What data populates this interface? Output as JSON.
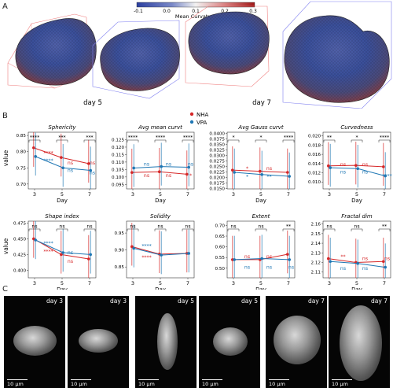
{
  "panel_labels": {
    "a": "A",
    "b": "B",
    "c": "C"
  },
  "colorbar": {
    "ticks": [
      "-0.1",
      "0.0",
      "0.1",
      "0.2",
      "0.3"
    ],
    "label": "Mean Curvature"
  },
  "panelA": {
    "day_left": "day 5",
    "day_right": "day 7"
  },
  "legend": {
    "nha": "NHA",
    "vpa": "VPA"
  },
  "colors": {
    "nha": "#d62728",
    "vpa": "#1f77b4"
  },
  "common": {
    "xlabel": "Day",
    "ylabel": "value"
  },
  "chart_data": [
    {
      "type": "line",
      "title": "Sphericity",
      "categories": [
        "3",
        "5",
        "7"
      ],
      "ylim": [
        0.685,
        0.86
      ],
      "yticks": [
        0.7,
        0.75,
        0.8,
        0.85
      ],
      "ytick_labels": [
        "0.70",
        "0.75",
        "0.80",
        "0.85"
      ],
      "series": [
        {
          "name": "NHA",
          "values": [
            0.812,
            0.782,
            0.763
          ]
        },
        {
          "name": "VPA",
          "values": [
            0.785,
            0.75,
            0.742
          ]
        }
      ],
      "brackets": [
        {
          "from": 0,
          "to": 1,
          "text": "****"
        },
        {
          "from": 1,
          "to": 2,
          "text": "***"
        },
        {
          "from": 2,
          "to": 3,
          "text": "***"
        }
      ],
      "inline": [
        {
          "x": 0.5,
          "y": 0.795,
          "text": "****",
          "c": "nha"
        },
        {
          "x": 0.5,
          "y": 0.772,
          "text": "****",
          "c": "vpa"
        },
        {
          "x": 1.3,
          "y": 0.765,
          "text": "ns",
          "c": "nha"
        },
        {
          "x": 1.3,
          "y": 0.742,
          "text": "ns",
          "c": "vpa"
        },
        {
          "x": 2.1,
          "y": 0.765,
          "text": "ns",
          "c": "nha"
        },
        {
          "x": 2.1,
          "y": 0.735,
          "text": "ns",
          "c": "vpa"
        }
      ]
    },
    {
      "type": "line",
      "title": "Avg mean curvt",
      "categories": [
        "3",
        "5",
        "7"
      ],
      "ylim": [
        0.092,
        0.13
      ],
      "yticks": [
        0.095,
        0.1,
        0.105,
        0.11,
        0.115,
        0.12,
        0.125
      ],
      "ytick_labels": [
        "0.095",
        "0.100",
        "0.105",
        "0.110",
        "0.115",
        "0.120",
        "0.125"
      ],
      "series": [
        {
          "name": "NHA",
          "values": [
            0.103,
            0.1035,
            0.1018
          ]
        },
        {
          "name": "VPA",
          "values": [
            0.106,
            0.107,
            0.1065
          ]
        }
      ],
      "brackets": [
        {
          "from": 0,
          "to": 1,
          "text": "****"
        },
        {
          "from": 1,
          "to": 2,
          "text": "****"
        },
        {
          "from": 2,
          "to": 3,
          "text": "****"
        }
      ],
      "inline": [
        {
          "x": 0.5,
          "y": 0.1085,
          "text": "ns",
          "c": "vpa"
        },
        {
          "x": 0.5,
          "y": 0.101,
          "text": "ns",
          "c": "nha"
        },
        {
          "x": 1.3,
          "y": 0.1085,
          "text": "ns",
          "c": "vpa"
        },
        {
          "x": 1.3,
          "y": 0.101,
          "text": "ns",
          "c": "nha"
        },
        {
          "x": 2.1,
          "y": 0.1085,
          "text": "ns",
          "c": "vpa"
        },
        {
          "x": 2.1,
          "y": 0.101,
          "text": "*",
          "c": "nha"
        }
      ]
    },
    {
      "type": "line",
      "title": "Avg Gauss curvt",
      "categories": [
        "3",
        "5",
        "7"
      ],
      "ylim": [
        0.0148,
        0.0405
      ],
      "yticks": [
        0.015,
        0.0175,
        0.02,
        0.0225,
        0.025,
        0.0275,
        0.03,
        0.0325,
        0.035,
        0.0375,
        0.04
      ],
      "ytick_labels": [
        "0.0150",
        "0.0175",
        "0.0200",
        "0.0225",
        "0.0250",
        "0.0275",
        "0.0300",
        "0.0325",
        "0.0350",
        "0.0375",
        "0.0400"
      ],
      "series": [
        {
          "name": "NHA",
          "values": [
            0.0233,
            0.0228,
            0.0223
          ]
        },
        {
          "name": "VPA",
          "values": [
            0.0223,
            0.0213,
            0.0205
          ]
        }
      ],
      "brackets": [
        {
          "from": 0,
          "to": 1,
          "text": "*"
        },
        {
          "from": 1,
          "to": 2,
          "text": "*"
        },
        {
          "from": 2,
          "to": 3,
          "text": "****"
        }
      ],
      "inline": [
        {
          "x": 0.5,
          "y": 0.024,
          "text": "*",
          "c": "nha"
        },
        {
          "x": 0.5,
          "y": 0.0203,
          "text": "*",
          "c": "vpa"
        },
        {
          "x": 1.3,
          "y": 0.024,
          "text": "ns",
          "c": "nha"
        },
        {
          "x": 1.3,
          "y": 0.0203,
          "text": "**",
          "c": "vpa"
        }
      ]
    },
    {
      "type": "line",
      "title": "Curvedness",
      "categories": [
        "3",
        "5",
        "7"
      ],
      "ylim": [
        0.0085,
        0.0208
      ],
      "yticks": [
        0.01,
        0.012,
        0.014,
        0.016,
        0.018,
        0.02
      ],
      "ytick_labels": [
        "0.010",
        "0.012",
        "0.014",
        "0.016",
        "0.018",
        "0.020"
      ],
      "series": [
        {
          "name": "NHA",
          "values": [
            0.0135,
            0.0136,
            0.0133
          ]
        },
        {
          "name": "VPA",
          "values": [
            0.0131,
            0.0129,
            0.0113
          ]
        }
      ],
      "brackets": [
        {
          "from": 0,
          "to": 1,
          "text": "**"
        },
        {
          "from": 1,
          "to": 2,
          "text": "*"
        },
        {
          "from": 2,
          "to": 3,
          "text": "****"
        }
      ],
      "inline": [
        {
          "x": 0.5,
          "y": 0.0138,
          "text": "ns",
          "c": "nha"
        },
        {
          "x": 0.5,
          "y": 0.0122,
          "text": "ns",
          "c": "vpa"
        },
        {
          "x": 1.3,
          "y": 0.0138,
          "text": "ns",
          "c": "nha"
        },
        {
          "x": 1.3,
          "y": 0.0122,
          "text": "ns",
          "c": "vpa"
        },
        {
          "x": 2.1,
          "y": 0.0113,
          "text": "****",
          "c": "vpa"
        }
      ]
    },
    {
      "type": "line",
      "title": "Shape index",
      "categories": [
        "3",
        "5",
        "7"
      ],
      "ylim": [
        0.388,
        0.478
      ],
      "yticks": [
        0.4,
        0.425,
        0.45,
        0.475
      ],
      "ytick_labels": [
        "0.400",
        "0.425",
        "0.450",
        "0.475"
      ],
      "series": [
        {
          "name": "NHA",
          "values": [
            0.45,
            0.425,
            0.418
          ]
        },
        {
          "name": "VPA",
          "values": [
            0.448,
            0.428,
            0.425
          ]
        }
      ],
      "brackets": [
        {
          "from": 0,
          "to": 1,
          "text": "ns"
        },
        {
          "from": 1,
          "to": 2,
          "text": "ns"
        },
        {
          "from": 2,
          "to": 3,
          "text": "ns"
        }
      ],
      "inline": [
        {
          "x": 0.5,
          "y": 0.443,
          "text": "****",
          "c": "vpa"
        },
        {
          "x": 0.5,
          "y": 0.43,
          "text": "****",
          "c": "nha"
        },
        {
          "x": 1.3,
          "y": 0.428,
          "text": "ns",
          "c": "vpa"
        },
        {
          "x": 1.3,
          "y": 0.414,
          "text": "ns",
          "c": "nha"
        }
      ]
    },
    {
      "type": "line",
      "title": "Solidity",
      "categories": [
        "3",
        "5",
        "7"
      ],
      "ylim": [
        0.818,
        0.985
      ],
      "yticks": [
        0.85,
        0.9,
        0.95
      ],
      "ytick_labels": [
        "0.85",
        "0.90",
        "0.95"
      ],
      "series": [
        {
          "name": "NHA",
          "values": [
            0.91,
            0.888,
            0.89
          ]
        },
        {
          "name": "VPA",
          "values": [
            0.905,
            0.885,
            0.89
          ]
        }
      ],
      "brackets": [
        {
          "from": 0,
          "to": 1,
          "text": "ns"
        },
        {
          "from": 1,
          "to": 2,
          "text": "ns"
        },
        {
          "from": 2,
          "to": 3,
          "text": "ns"
        }
      ],
      "inline": [
        {
          "x": 0.5,
          "y": 0.912,
          "text": "****",
          "c": "vpa"
        },
        {
          "x": 0.5,
          "y": 0.878,
          "text": "****",
          "c": "nha"
        }
      ]
    },
    {
      "type": "line",
      "title": "Extent",
      "categories": [
        "3",
        "5",
        "7"
      ],
      "ylim": [
        0.455,
        0.72
      ],
      "yticks": [
        0.5,
        0.55,
        0.6,
        0.65,
        0.7
      ],
      "ytick_labels": [
        "0.50",
        "0.55",
        "0.60",
        "0.65",
        "0.70"
      ],
      "series": [
        {
          "name": "NHA",
          "values": [
            0.54,
            0.54,
            0.565
          ]
        },
        {
          "name": "VPA",
          "values": [
            0.54,
            0.545,
            0.54
          ]
        }
      ],
      "brackets": [
        {
          "from": 0,
          "to": 1,
          "text": "ns"
        },
        {
          "from": 1,
          "to": 2,
          "text": "ns"
        },
        {
          "from": 2,
          "to": 3,
          "text": "**"
        }
      ],
      "inline": [
        {
          "x": 0.5,
          "y": 0.555,
          "text": "ns",
          "c": "nha"
        },
        {
          "x": 0.5,
          "y": 0.505,
          "text": "ns",
          "c": "vpa"
        },
        {
          "x": 1.3,
          "y": 0.555,
          "text": "ns",
          "c": "nha"
        },
        {
          "x": 1.3,
          "y": 0.505,
          "text": "ns",
          "c": "vpa"
        },
        {
          "x": 2.1,
          "y": 0.505,
          "text": "ns",
          "c": "vpa"
        }
      ]
    },
    {
      "type": "line",
      "title": "Fractal dim",
      "categories": [
        "3",
        "5",
        "7"
      ],
      "ylim": [
        2.104,
        2.163
      ],
      "yticks": [
        2.11,
        2.12,
        2.13,
        2.14,
        2.15,
        2.16
      ],
      "ytick_labels": [
        "2.11",
        "2.12",
        "2.13",
        "2.14",
        "2.15",
        "2.16"
      ],
      "series": [
        {
          "name": "NHA",
          "values": [
            2.124,
            2.12,
            2.121
          ]
        },
        {
          "name": "VPA",
          "values": [
            2.121,
            2.119,
            2.115
          ]
        }
      ],
      "brackets": [
        {
          "from": 0,
          "to": 1,
          "text": "ns"
        },
        {
          "from": 1,
          "to": 2,
          "text": "ns"
        },
        {
          "from": 2,
          "to": 3,
          "text": "**"
        }
      ],
      "inline": [
        {
          "x": 0.5,
          "y": 2.126,
          "text": "**",
          "c": "nha"
        },
        {
          "x": 0.5,
          "y": 2.114,
          "text": "ns",
          "c": "vpa"
        },
        {
          "x": 1.3,
          "y": 2.124,
          "text": "ns",
          "c": "nha"
        },
        {
          "x": 1.3,
          "y": 2.114,
          "text": "ns",
          "c": "vpa"
        },
        {
          "x": 2.1,
          "y": 2.124,
          "text": "ns",
          "c": "nha"
        }
      ]
    }
  ],
  "panelC": {
    "labels": [
      "day 3",
      "day 3",
      "day 5",
      "day 5",
      "day 7",
      "day 7"
    ],
    "scale": "10 µm"
  }
}
